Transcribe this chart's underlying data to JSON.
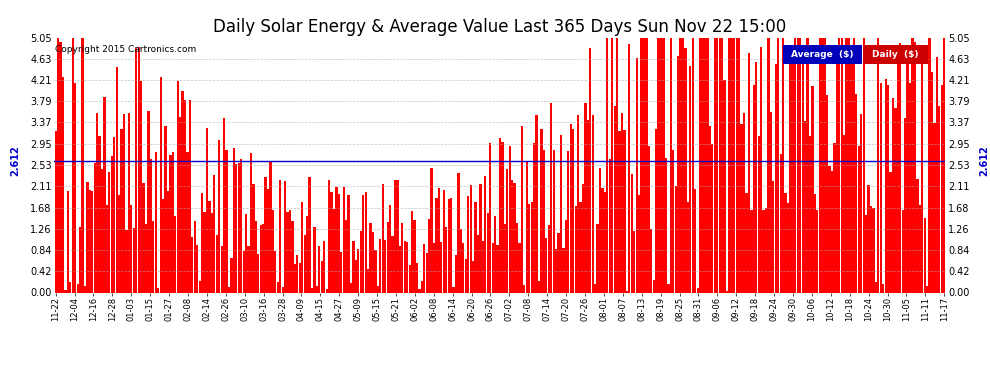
{
  "title": "Daily Solar Energy & Average Value Last 365 Days Sun Nov 22 15:00",
  "copyright": "Copyright 2015 Cartronics.com",
  "average_value": 2.612,
  "ylim": [
    0,
    5.05
  ],
  "yticks": [
    0.0,
    0.42,
    0.84,
    1.26,
    1.68,
    2.11,
    2.53,
    2.95,
    3.37,
    3.79,
    4.21,
    4.63,
    5.05
  ],
  "bar_color": "#FF0000",
  "average_line_color": "#0000CC",
  "background_color": "#FFFFFF",
  "grid_color": "#AAAAAA",
  "title_fontsize": 12,
  "legend_avg_color": "#0000BB",
  "legend_daily_color": "#CC0000",
  "x_labels": [
    "11-22",
    "12-04",
    "12-16",
    "12-28",
    "01-03",
    "01-15",
    "01-27",
    "02-08",
    "02-14",
    "02-26",
    "03-10",
    "03-16",
    "03-28",
    "04-09",
    "04-15",
    "04-27",
    "05-09",
    "05-15",
    "05-21",
    "06-02",
    "06-08",
    "06-14",
    "06-20",
    "06-26",
    "07-02",
    "07-08",
    "07-14",
    "07-20",
    "07-26",
    "08-01",
    "08-07",
    "08-13",
    "08-19",
    "08-25",
    "08-31",
    "09-06",
    "09-12",
    "09-18",
    "09-24",
    "09-30",
    "10-06",
    "10-12",
    "10-18",
    "10-24",
    "10-30",
    "11-05",
    "11-11",
    "11-17"
  ],
  "num_bars": 365,
  "seed": 42
}
